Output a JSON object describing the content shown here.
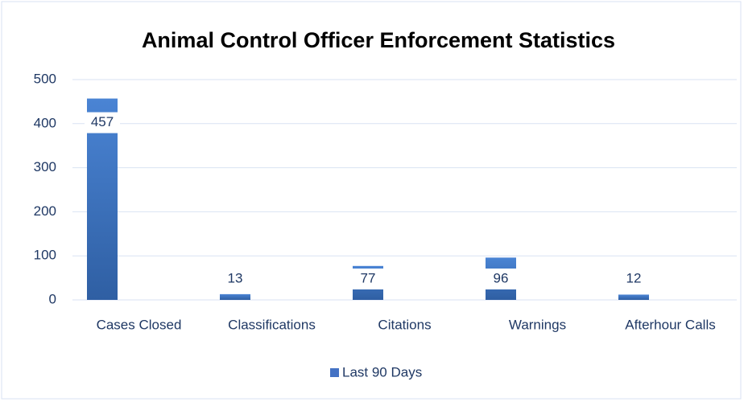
{
  "chart_data": {
    "type": "bar",
    "title": "Animal Control Officer Enforcement Statistics",
    "categories": [
      "Cases Closed",
      "Classifications",
      "Citations",
      "Warnings",
      "Afterhour Calls"
    ],
    "series": [
      {
        "name": "Last 90 Days",
        "color": "#4472c4",
        "values": [
          457,
          13,
          77,
          96,
          12
        ]
      }
    ],
    "ylim": [
      0,
      500
    ],
    "yticks": [
      0,
      100,
      200,
      300,
      400,
      500
    ],
    "grid": true,
    "legend": "bottom"
  }
}
